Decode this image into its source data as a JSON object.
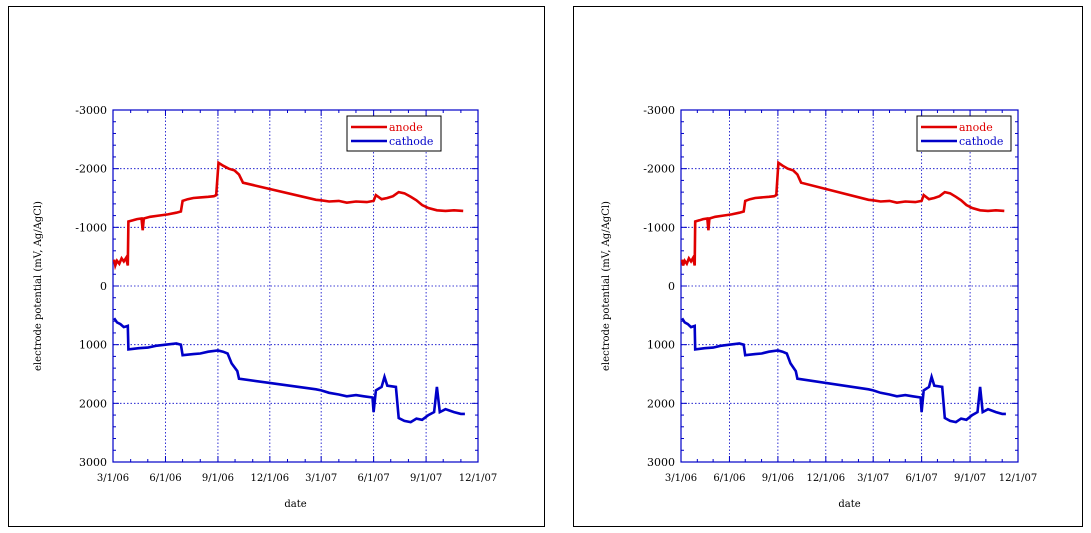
{
  "chart_data": [
    {
      "type": "line",
      "title": "",
      "xlabel": "date",
      "ylabel": "electrode potential (mV, Ag/AgCl)",
      "xlim": [
        "2006-03-01",
        "2007-12-01"
      ],
      "ylim": [
        3000,
        -3000
      ],
      "y_inverted": true,
      "grid": true,
      "legend_position": "top-right",
      "x_ticks": [
        "3/1/06",
        "6/1/06",
        "9/1/06",
        "12/1/06",
        "3/1/07",
        "6/1/07",
        "9/1/07",
        "12/1/07"
      ],
      "y_ticks": [
        "-3000",
        "-2000",
        "-1000",
        "0",
        "1000",
        "2000",
        "3000"
      ],
      "series": [
        {
          "name": "anode",
          "color": "#e00000",
          "points": [
            [
              "2006-03-03",
              -450
            ],
            [
              "2006-03-05",
              -350
            ],
            [
              "2006-03-08",
              -430
            ],
            [
              "2006-03-12",
              -380
            ],
            [
              "2006-03-16",
              -470
            ],
            [
              "2006-03-20",
              -420
            ],
            [
              "2006-03-24",
              -480
            ],
            [
              "2006-03-27",
              -350
            ],
            [
              "2006-03-28",
              -1100
            ],
            [
              "2006-04-05",
              -1120
            ],
            [
              "2006-04-12",
              -1140
            ],
            [
              "2006-04-20",
              -1150
            ],
            [
              "2006-04-22",
              -950
            ],
            [
              "2006-04-24",
              -1150
            ],
            [
              "2006-05-05",
              -1180
            ],
            [
              "2006-05-20",
              -1200
            ],
            [
              "2006-06-05",
              -1220
            ],
            [
              "2006-06-20",
              -1250
            ],
            [
              "2006-06-28",
              -1270
            ],
            [
              "2006-07-01",
              -1450
            ],
            [
              "2006-07-10",
              -1480
            ],
            [
              "2006-07-20",
              -1500
            ],
            [
              "2006-08-01",
              -1510
            ],
            [
              "2006-08-15",
              -1520
            ],
            [
              "2006-08-25",
              -1530
            ],
            [
              "2006-08-29",
              -1550
            ],
            [
              "2006-09-02",
              -2100
            ],
            [
              "2006-09-10",
              -2050
            ],
            [
              "2006-09-20",
              -2000
            ],
            [
              "2006-09-30",
              -1970
            ],
            [
              "2006-10-08",
              -1900
            ],
            [
              "2006-10-15",
              -1760
            ],
            [
              "2007-02-20",
              -1470
            ],
            [
              "2007-03-01",
              -1460
            ],
            [
              "2007-03-15",
              -1440
            ],
            [
              "2007-04-01",
              -1450
            ],
            [
              "2007-04-15",
              -1420
            ],
            [
              "2007-05-01",
              -1440
            ],
            [
              "2007-05-20",
              -1430
            ],
            [
              "2007-06-01",
              -1450
            ],
            [
              "2007-06-05",
              -1550
            ],
            [
              "2007-06-15",
              -1480
            ],
            [
              "2007-06-25",
              -1500
            ],
            [
              "2007-07-05",
              -1530
            ],
            [
              "2007-07-15",
              -1600
            ],
            [
              "2007-07-25",
              -1580
            ],
            [
              "2007-08-05",
              -1520
            ],
            [
              "2007-08-15",
              -1460
            ],
            [
              "2007-08-25",
              -1380
            ],
            [
              "2007-09-05",
              -1330
            ],
            [
              "2007-09-20",
              -1290
            ],
            [
              "2007-10-05",
              -1280
            ],
            [
              "2007-10-20",
              -1290
            ],
            [
              "2007-11-05",
              -1280
            ]
          ]
        },
        {
          "name": "cathode",
          "color": "#0000c8",
          "points": [
            [
              "2006-03-03",
              550
            ],
            [
              "2006-03-08",
              620
            ],
            [
              "2006-03-14",
              650
            ],
            [
              "2006-03-20",
              700
            ],
            [
              "2006-03-27",
              680
            ],
            [
              "2006-03-28",
              1080
            ],
            [
              "2006-04-15",
              1060
            ],
            [
              "2006-05-01",
              1050
            ],
            [
              "2006-05-15",
              1020
            ],
            [
              "2006-06-01",
              1000
            ],
            [
              "2006-06-20",
              980
            ],
            [
              "2006-06-28",
              1000
            ],
            [
              "2006-07-01",
              1180
            ],
            [
              "2006-07-20",
              1160
            ],
            [
              "2006-08-01",
              1150
            ],
            [
              "2006-08-15",
              1120
            ],
            [
              "2006-09-01",
              1100
            ],
            [
              "2006-09-10",
              1120
            ],
            [
              "2006-09-18",
              1150
            ],
            [
              "2006-09-25",
              1320
            ],
            [
              "2006-10-05",
              1450
            ],
            [
              "2006-10-08",
              1580
            ],
            [
              "2007-02-20",
              1760
            ],
            [
              "2007-03-01",
              1780
            ],
            [
              "2007-03-15",
              1820
            ],
            [
              "2007-04-01",
              1850
            ],
            [
              "2007-04-15",
              1880
            ],
            [
              "2007-05-01",
              1860
            ],
            [
              "2007-05-15",
              1880
            ],
            [
              "2007-05-30",
              1900
            ],
            [
              "2007-06-01",
              2150
            ],
            [
              "2007-06-05",
              1780
            ],
            [
              "2007-06-15",
              1720
            ],
            [
              "2007-06-20",
              1550
            ],
            [
              "2007-06-25",
              1700
            ],
            [
              "2007-07-10",
              1720
            ],
            [
              "2007-07-15",
              2250
            ],
            [
              "2007-07-25",
              2300
            ],
            [
              "2007-08-05",
              2320
            ],
            [
              "2007-08-15",
              2260
            ],
            [
              "2007-08-25",
              2280
            ],
            [
              "2007-09-05",
              2200
            ],
            [
              "2007-09-15",
              2150
            ],
            [
              "2007-09-20",
              1720
            ],
            [
              "2007-09-25",
              2150
            ],
            [
              "2007-10-05",
              2100
            ],
            [
              "2007-10-20",
              2150
            ],
            [
              "2007-11-01",
              2180
            ],
            [
              "2007-11-08",
              2180
            ]
          ]
        }
      ]
    },
    {
      "type": "line",
      "title": "",
      "xlabel": "date",
      "ylabel": "electrode potential (mV, Ag/AgCl)",
      "xlim": [
        "2006-03-01",
        "2007-12-01"
      ],
      "ylim": [
        3000,
        -3000
      ],
      "y_inverted": true,
      "grid": true,
      "legend_position": "top-right",
      "x_ticks": [
        "3/1/06",
        "6/1/06",
        "9/1/06",
        "12/1/06",
        "3/1/07",
        "6/1/07",
        "9/1/07",
        "12/1/07"
      ],
      "y_ticks": [
        "-3000",
        "-2000",
        "-1000",
        "0",
        "1000",
        "2000",
        "3000"
      ],
      "series": [
        {
          "name": "anode",
          "color": "#e00000",
          "points": [
            [
              "2006-03-03",
              -450
            ],
            [
              "2006-03-05",
              -350
            ],
            [
              "2006-03-08",
              -430
            ],
            [
              "2006-03-12",
              -380
            ],
            [
              "2006-03-16",
              -470
            ],
            [
              "2006-03-20",
              -420
            ],
            [
              "2006-03-24",
              -480
            ],
            [
              "2006-03-27",
              -350
            ],
            [
              "2006-03-28",
              -1100
            ],
            [
              "2006-04-05",
              -1120
            ],
            [
              "2006-04-12",
              -1140
            ],
            [
              "2006-04-20",
              -1150
            ],
            [
              "2006-04-22",
              -950
            ],
            [
              "2006-04-24",
              -1150
            ],
            [
              "2006-05-05",
              -1180
            ],
            [
              "2006-05-20",
              -1200
            ],
            [
              "2006-06-05",
              -1220
            ],
            [
              "2006-06-20",
              -1250
            ],
            [
              "2006-06-28",
              -1270
            ],
            [
              "2006-07-01",
              -1450
            ],
            [
              "2006-07-10",
              -1480
            ],
            [
              "2006-07-20",
              -1500
            ],
            [
              "2006-08-01",
              -1510
            ],
            [
              "2006-08-15",
              -1520
            ],
            [
              "2006-08-25",
              -1530
            ],
            [
              "2006-08-29",
              -1550
            ],
            [
              "2006-09-02",
              -2100
            ],
            [
              "2006-09-10",
              -2050
            ],
            [
              "2006-09-20",
              -2000
            ],
            [
              "2006-09-30",
              -1970
            ],
            [
              "2006-10-08",
              -1900
            ],
            [
              "2006-10-15",
              -1760
            ],
            [
              "2007-02-20",
              -1470
            ],
            [
              "2007-03-01",
              -1460
            ],
            [
              "2007-03-15",
              -1440
            ],
            [
              "2007-04-01",
              -1450
            ],
            [
              "2007-04-15",
              -1420
            ],
            [
              "2007-05-01",
              -1440
            ],
            [
              "2007-05-20",
              -1430
            ],
            [
              "2007-06-01",
              -1450
            ],
            [
              "2007-06-05",
              -1550
            ],
            [
              "2007-06-15",
              -1480
            ],
            [
              "2007-06-25",
              -1500
            ],
            [
              "2007-07-05",
              -1530
            ],
            [
              "2007-07-15",
              -1600
            ],
            [
              "2007-07-25",
              -1580
            ],
            [
              "2007-08-05",
              -1520
            ],
            [
              "2007-08-15",
              -1460
            ],
            [
              "2007-08-25",
              -1380
            ],
            [
              "2007-09-05",
              -1330
            ],
            [
              "2007-09-20",
              -1290
            ],
            [
              "2007-10-05",
              -1280
            ],
            [
              "2007-10-20",
              -1290
            ],
            [
              "2007-11-05",
              -1280
            ]
          ]
        },
        {
          "name": "cathode",
          "color": "#0000c8",
          "points": [
            [
              "2006-03-03",
              550
            ],
            [
              "2006-03-08",
              620
            ],
            [
              "2006-03-14",
              650
            ],
            [
              "2006-03-20",
              700
            ],
            [
              "2006-03-27",
              680
            ],
            [
              "2006-03-28",
              1080
            ],
            [
              "2006-04-15",
              1060
            ],
            [
              "2006-05-01",
              1050
            ],
            [
              "2006-05-15",
              1020
            ],
            [
              "2006-06-01",
              1000
            ],
            [
              "2006-06-20",
              980
            ],
            [
              "2006-06-28",
              1000
            ],
            [
              "2006-07-01",
              1180
            ],
            [
              "2006-07-20",
              1160
            ],
            [
              "2006-08-01",
              1150
            ],
            [
              "2006-08-15",
              1120
            ],
            [
              "2006-09-01",
              1100
            ],
            [
              "2006-09-10",
              1120
            ],
            [
              "2006-09-18",
              1150
            ],
            [
              "2006-09-25",
              1320
            ],
            [
              "2006-10-05",
              1450
            ],
            [
              "2006-10-08",
              1580
            ],
            [
              "2007-02-20",
              1760
            ],
            [
              "2007-03-01",
              1780
            ],
            [
              "2007-03-15",
              1820
            ],
            [
              "2007-04-01",
              1850
            ],
            [
              "2007-04-15",
              1880
            ],
            [
              "2007-05-01",
              1860
            ],
            [
              "2007-05-15",
              1880
            ],
            [
              "2007-05-30",
              1900
            ],
            [
              "2007-06-01",
              2150
            ],
            [
              "2007-06-05",
              1780
            ],
            [
              "2007-06-15",
              1720
            ],
            [
              "2007-06-20",
              1550
            ],
            [
              "2007-06-25",
              1700
            ],
            [
              "2007-07-10",
              1720
            ],
            [
              "2007-07-15",
              2250
            ],
            [
              "2007-07-25",
              2300
            ],
            [
              "2007-08-05",
              2320
            ],
            [
              "2007-08-15",
              2260
            ],
            [
              "2007-08-25",
              2280
            ],
            [
              "2007-09-05",
              2200
            ],
            [
              "2007-09-15",
              2150
            ],
            [
              "2007-09-20",
              1720
            ],
            [
              "2007-09-25",
              2150
            ],
            [
              "2007-10-05",
              2100
            ],
            [
              "2007-10-20",
              2150
            ],
            [
              "2007-11-01",
              2180
            ],
            [
              "2007-11-08",
              2180
            ]
          ]
        }
      ]
    }
  ]
}
